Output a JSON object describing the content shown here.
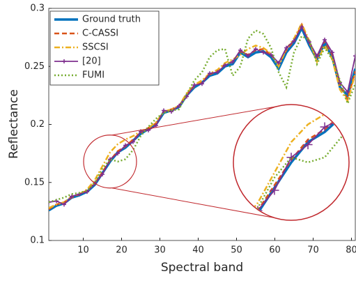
{
  "chart_data": {
    "type": "line",
    "x": [
      1,
      3,
      5,
      7,
      9,
      11,
      13,
      15,
      17,
      19,
      21,
      23,
      25,
      27,
      29,
      31,
      33,
      35,
      37,
      39,
      41,
      43,
      45,
      47,
      49,
      51,
      53,
      55,
      57,
      59,
      61,
      63,
      65,
      67,
      69,
      71,
      73,
      75,
      77,
      79,
      81
    ],
    "xlabel": "Spectral band",
    "ylabel": "Reflectance",
    "xlim": [
      1,
      81
    ],
    "ylim": [
      0.1,
      0.3
    ],
    "xticks": [
      10,
      20,
      30,
      40,
      50,
      60,
      70,
      80
    ],
    "yticks": [
      0.1,
      0.15,
      0.2,
      0.25,
      0.3
    ],
    "legend": "upper left",
    "series": [
      {
        "name": "Ground truth",
        "color": "#0072bd",
        "values": [
          0.126,
          0.13,
          0.132,
          0.137,
          0.139,
          0.142,
          0.148,
          0.158,
          0.168,
          0.176,
          0.18,
          0.186,
          0.192,
          0.196,
          0.2,
          0.21,
          0.212,
          0.215,
          0.225,
          0.232,
          0.236,
          0.242,
          0.244,
          0.25,
          0.252,
          0.262,
          0.258,
          0.262,
          0.263,
          0.258,
          0.248,
          0.262,
          0.27,
          0.283,
          0.268,
          0.256,
          0.27,
          0.258,
          0.232,
          0.225,
          0.248
        ]
      },
      {
        "name": "C-CASSI",
        "color": "#d95319",
        "values": [
          0.127,
          0.131,
          0.133,
          0.137,
          0.14,
          0.143,
          0.149,
          0.159,
          0.169,
          0.177,
          0.181,
          0.187,
          0.193,
          0.197,
          0.201,
          0.211,
          0.213,
          0.216,
          0.226,
          0.233,
          0.237,
          0.243,
          0.246,
          0.252,
          0.254,
          0.263,
          0.26,
          0.264,
          0.265,
          0.26,
          0.252,
          0.264,
          0.272,
          0.286,
          0.27,
          0.258,
          0.272,
          0.26,
          0.234,
          0.222,
          0.246
        ]
      },
      {
        "name": "SSCSI",
        "color": "#edb120",
        "values": [
          0.128,
          0.131,
          0.133,
          0.138,
          0.14,
          0.144,
          0.152,
          0.164,
          0.176,
          0.183,
          0.187,
          0.19,
          0.194,
          0.197,
          0.202,
          0.211,
          0.213,
          0.216,
          0.227,
          0.234,
          0.238,
          0.244,
          0.247,
          0.253,
          0.256,
          0.26,
          0.265,
          0.268,
          0.266,
          0.261,
          0.25,
          0.265,
          0.274,
          0.287,
          0.272,
          0.254,
          0.268,
          0.256,
          0.23,
          0.22,
          0.244
        ]
      },
      {
        "name": "[20]",
        "color": "#7e2f8e",
        "values": [
          0.133,
          0.134,
          0.131,
          0.138,
          0.14,
          0.142,
          0.149,
          0.157,
          0.17,
          0.175,
          0.182,
          0.185,
          0.194,
          0.195,
          0.199,
          0.212,
          0.211,
          0.216,
          0.224,
          0.234,
          0.235,
          0.244,
          0.245,
          0.251,
          0.254,
          0.264,
          0.259,
          0.265,
          0.262,
          0.26,
          0.253,
          0.266,
          0.272,
          0.284,
          0.271,
          0.259,
          0.273,
          0.262,
          0.236,
          0.228,
          0.259
        ]
      },
      {
        "name": "FUMI",
        "color": "#77ac30",
        "values": [
          0.133,
          0.135,
          0.137,
          0.14,
          0.141,
          0.143,
          0.15,
          0.162,
          0.17,
          0.168,
          0.17,
          0.178,
          0.19,
          0.198,
          0.205,
          0.21,
          0.212,
          0.213,
          0.226,
          0.238,
          0.245,
          0.258,
          0.264,
          0.265,
          0.242,
          0.25,
          0.274,
          0.281,
          0.278,
          0.266,
          0.245,
          0.232,
          0.262,
          0.276,
          0.273,
          0.252,
          0.266,
          0.256,
          0.238,
          0.218,
          0.235
        ]
      }
    ]
  }
}
